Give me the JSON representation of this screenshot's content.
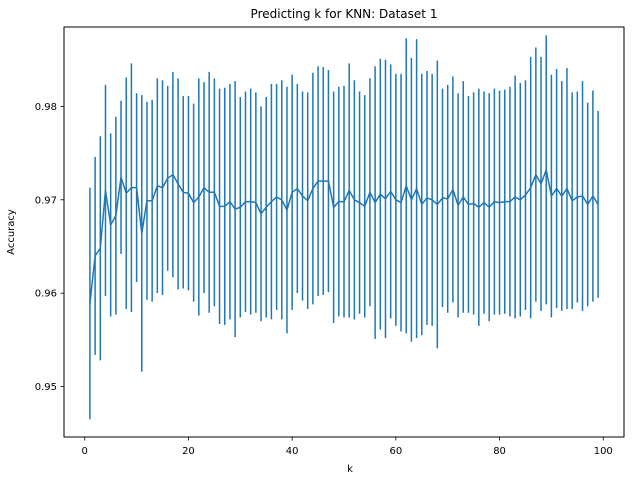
{
  "chart_data": {
    "type": "line",
    "title": "Predicting k for KNN: Dataset 1",
    "xlabel": "k",
    "ylabel": "Accuracy",
    "xlim": [
      -4,
      104
    ],
    "ylim": [
      0.9446,
      0.9885
    ],
    "x_ticks": [
      0,
      20,
      40,
      60,
      80,
      100
    ],
    "y_ticks": [
      0.95,
      0.96,
      0.97,
      0.98
    ],
    "y_tick_labels": [
      "0.95",
      "0.96",
      "0.97",
      "0.98"
    ],
    "grid": false,
    "legend": "none",
    "series": [
      {
        "color": "#1f77b4",
        "x": [
          1,
          2,
          3,
          4,
          5,
          6,
          7,
          8,
          9,
          10,
          11,
          12,
          13,
          14,
          15,
          16,
          17,
          18,
          19,
          20,
          21,
          22,
          23,
          24,
          25,
          26,
          27,
          28,
          29,
          30,
          31,
          32,
          33,
          34,
          35,
          36,
          37,
          38,
          39,
          40,
          41,
          42,
          43,
          44,
          45,
          46,
          47,
          48,
          49,
          50,
          51,
          52,
          53,
          54,
          55,
          56,
          57,
          58,
          59,
          60,
          61,
          62,
          63,
          64,
          65,
          66,
          67,
          68,
          69,
          70,
          71,
          72,
          73,
          74,
          75,
          76,
          77,
          78,
          79,
          80,
          81,
          82,
          83,
          84,
          85,
          86,
          87,
          88,
          89,
          90,
          91,
          92,
          93,
          94,
          95,
          96,
          97,
          98,
          99
        ],
        "y": [
          0.9589,
          0.964,
          0.9648,
          0.971,
          0.9673,
          0.9683,
          0.9724,
          0.9707,
          0.9713,
          0.9713,
          0.9664,
          0.9699,
          0.9699,
          0.9715,
          0.9713,
          0.9723,
          0.9727,
          0.9717,
          0.9708,
          0.9707,
          0.9697,
          0.9703,
          0.9713,
          0.9708,
          0.9708,
          0.9693,
          0.9693,
          0.9698,
          0.969,
          0.9692,
          0.9698,
          0.9698,
          0.9697,
          0.9685,
          0.9692,
          0.9698,
          0.9703,
          0.97,
          0.9689,
          0.9708,
          0.9712,
          0.9704,
          0.9699,
          0.9712,
          0.972,
          0.972,
          0.972,
          0.9692,
          0.9698,
          0.9698,
          0.971,
          0.97,
          0.9697,
          0.9693,
          0.9708,
          0.9697,
          0.9706,
          0.9701,
          0.9709,
          0.97,
          0.9697,
          0.9715,
          0.97,
          0.9712,
          0.9695,
          0.9702,
          0.97,
          0.9695,
          0.9702,
          0.9701,
          0.9711,
          0.9694,
          0.9703,
          0.9695,
          0.9696,
          0.9692,
          0.9697,
          0.9692,
          0.9698,
          0.9697,
          0.9698,
          0.9698,
          0.9703,
          0.97,
          0.9705,
          0.9713,
          0.9727,
          0.9717,
          0.9732,
          0.9704,
          0.9712,
          0.9704,
          0.9712,
          0.9699,
          0.9703,
          0.9704,
          0.9695,
          0.9704,
          0.9695
        ],
        "err": [
          0.0124,
          0.0106,
          0.012,
          0.0113,
          0.0098,
          0.0106,
          0.0082,
          0.0124,
          0.0133,
          0.0101,
          0.0148,
          0.0106,
          0.0108,
          0.0115,
          0.0115,
          0.0099,
          0.011,
          0.0113,
          0.0103,
          0.0104,
          0.0106,
          0.0127,
          0.0113,
          0.0129,
          0.0122,
          0.0126,
          0.0127,
          0.0126,
          0.0137,
          0.0118,
          0.0118,
          0.0121,
          0.0118,
          0.0115,
          0.0118,
          0.0126,
          0.0121,
          0.0128,
          0.0132,
          0.0126,
          0.0112,
          0.0112,
          0.0116,
          0.0124,
          0.0123,
          0.0122,
          0.0119,
          0.0124,
          0.0123,
          0.0124,
          0.0136,
          0.0128,
          0.0119,
          0.0119,
          0.0122,
          0.0146,
          0.0145,
          0.0149,
          0.0136,
          0.0135,
          0.0138,
          0.0158,
          0.0152,
          0.016,
          0.014,
          0.0136,
          0.0135,
          0.0154,
          0.0117,
          0.0122,
          0.0121,
          0.012,
          0.0124,
          0.0116,
          0.0119,
          0.0127,
          0.0119,
          0.0122,
          0.0121,
          0.012,
          0.012,
          0.0123,
          0.013,
          0.0125,
          0.0123,
          0.014,
          0.0136,
          0.0136,
          0.0144,
          0.013,
          0.0128,
          0.0123,
          0.0129,
          0.0116,
          0.0113,
          0.0123,
          0.0109,
          0.0113,
          0.01
        ]
      }
    ]
  }
}
